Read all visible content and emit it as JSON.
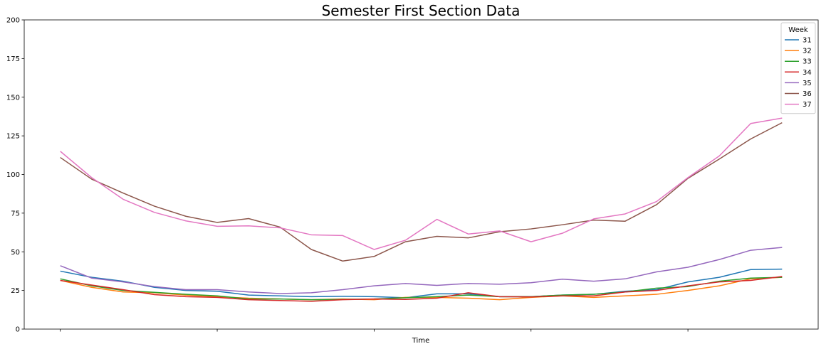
{
  "chart_data": {
    "type": "line",
    "title": "Semester First Section Data",
    "xlabel": "Time",
    "ylabel": "",
    "ylim": [
      0,
      200
    ],
    "yticks": [
      0,
      25,
      50,
      75,
      100,
      125,
      150,
      175,
      200
    ],
    "x_tick_positions": [
      0,
      5,
      10,
      15,
      20
    ],
    "x_tick_labels": [
      "",
      "",
      "",
      "",
      ""
    ],
    "xlim": [
      -1.15,
      24.15
    ],
    "x": [
      0,
      1,
      2,
      3,
      4,
      5,
      6,
      7,
      8,
      9,
      10,
      11,
      12,
      13,
      14,
      15,
      16,
      17,
      18,
      19,
      20,
      21,
      22,
      23
    ],
    "grid": false,
    "legend": {
      "title": "Week",
      "placement": "top-right"
    },
    "series": [
      {
        "name": "31",
        "color": "#1f77b4",
        "values": [
          37.5,
          33.5,
          31,
          27,
          25,
          24.5,
          22,
          21.5,
          21,
          21.2,
          21,
          20.3,
          22.8,
          22.8,
          21,
          21,
          22,
          22.5,
          24.5,
          25.5,
          30.5,
          33.5,
          38.5,
          38.8
        ]
      },
      {
        "name": "32",
        "color": "#ff7f0e",
        "values": [
          31.5,
          27,
          24,
          23.5,
          22,
          21,
          20,
          19.5,
          19,
          19.5,
          19,
          20.5,
          20.5,
          20,
          19,
          20.5,
          21.5,
          20.5,
          21.5,
          22.5,
          25,
          28,
          32.5,
          33.5
        ]
      },
      {
        "name": "33",
        "color": "#2ca02c",
        "values": [
          32.5,
          28,
          25,
          23.8,
          22.5,
          21.5,
          19.5,
          19.5,
          19,
          19.2,
          19.5,
          20.3,
          21,
          22,
          21,
          21,
          22,
          22.5,
          24,
          26.5,
          27.5,
          31,
          33,
          33.5
        ]
      },
      {
        "name": "34",
        "color": "#d62728",
        "values": [
          31.5,
          28.5,
          25.5,
          22.3,
          21,
          20.5,
          19,
          18.5,
          18,
          19,
          19.5,
          19.2,
          20,
          23.5,
          21,
          20.8,
          21.5,
          21.5,
          24,
          25,
          28,
          30.5,
          31.5,
          34
        ]
      },
      {
        "name": "35",
        "color": "#9467bd",
        "values": [
          41,
          33,
          30.5,
          27.5,
          25.5,
          25.5,
          24,
          23,
          23.5,
          25.5,
          28,
          29.5,
          28.3,
          29.5,
          29,
          30,
          32.3,
          31,
          32.5,
          37,
          40,
          45,
          51,
          52.8
        ]
      },
      {
        "name": "36",
        "color": "#8c564b",
        "values": [
          111,
          97,
          88,
          79.5,
          73,
          69,
          71.5,
          66,
          51.5,
          44,
          47,
          56.5,
          60,
          59,
          63,
          64.8,
          67.5,
          70.5,
          69.8,
          80.5,
          97.5,
          110,
          123,
          133.5
        ]
      },
      {
        "name": "37",
        "color": "#e377c2",
        "values": [
          115,
          98,
          84,
          75.5,
          70,
          66.5,
          66.8,
          65.5,
          61,
          60.5,
          51.5,
          57.5,
          71,
          61.5,
          63.5,
          56.5,
          62,
          71.3,
          74.5,
          82.5,
          98,
          112,
          133,
          136.5
        ]
      }
    ]
  }
}
